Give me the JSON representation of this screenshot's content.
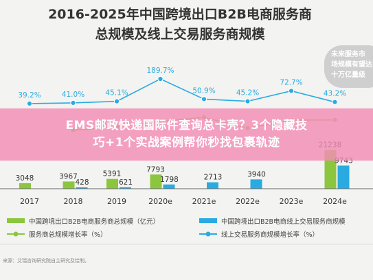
{
  "title_line1": "2016-2025年中国跨境出口B2B电商服务商",
  "title_line2": "总规模及线上交易服务商规模",
  "callout": [
    "未来服务市",
    "场规模有望达",
    "十万亿量级"
  ],
  "banner": {
    "line1": "EMS邮政快递国际件查询总卡壳？3个隐藏技",
    "line2": "巧+1个实战案例帮你秒找包裹轨迹"
  },
  "legend": {
    "total_scale": "中国跨境出口B2B电商服务商总规模（亿元）",
    "online_scale": "中国跨境出口B2B电商线上交易服务商规模",
    "total_growth": "服务商总规模增长率（%）",
    "online_growth": "线上交易服务商规模增长率（%）"
  },
  "source_text": "来源：艾瑞咨询研究院自主研究及绘制。",
  "colors": {
    "total_bar": "#8cc63f",
    "online_bar": "#29abe2",
    "total_line": "#8cc63f",
    "online_line": "#29abe2",
    "callout_bg": "#cfcfcf",
    "banner": "#f38cb4"
  },
  "chart_data": {
    "type": "bar",
    "categories": [
      "2017",
      "2018",
      "2019",
      "2020e",
      "2021e",
      "2022e",
      "2023e",
      "2024e"
    ],
    "series": [
      {
        "name": "中国跨境出口B2B电商服务商总规模（亿元）",
        "values": [
          3048,
          3967,
          5391,
          7793,
          null,
          null,
          null,
          21238
        ],
        "labels": [
          "3048",
          "3967",
          "5391",
          "7793",
          "",
          "",
          "",
          "21238"
        ]
      },
      {
        "name": "中国跨境出口B2B电商线上交易服务商规模",
        "values": [
          null,
          428,
          621,
          1798,
          2713,
          3940,
          null,
          9743
        ],
        "labels": [
          "",
          "428",
          "621",
          "1798",
          "2713",
          "3940",
          "",
          "9743"
        ]
      },
      {
        "name": "服务商总规模增长率（%）",
        "values": [
          null,
          30.2,
          35.9,
          44.6,
          51.2,
          33.6,
          46.5,
          47.0
        ],
        "labels": [
          "",
          "",
          "",
          "",
          "",
          "",
          "",
          ""
        ]
      },
      {
        "name": "线上交易服务商规模增长率（%）",
        "values": [
          39.2,
          41.0,
          45.1,
          189.7,
          50.9,
          45.2,
          72.7,
          43.2
        ],
        "labels": [
          "39.2%",
          "41.0%",
          "45.1%",
          "189.7%",
          "50.9%",
          "45.2%",
          "72.7%",
          "43.2%"
        ]
      }
    ]
  }
}
